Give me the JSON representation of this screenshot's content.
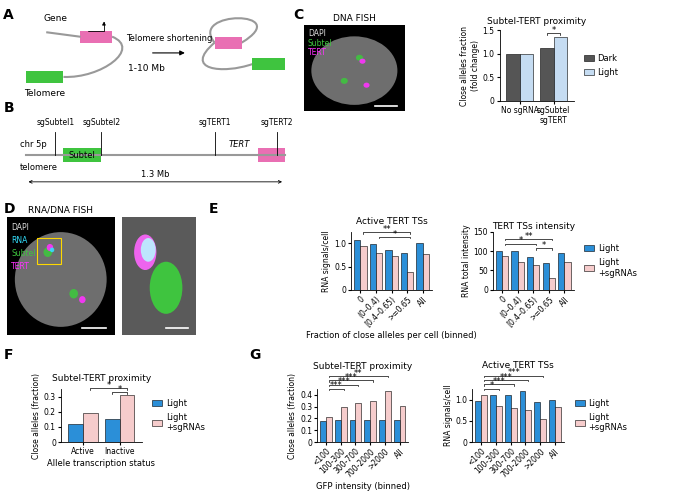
{
  "panel_labels": [
    "A",
    "B",
    "C",
    "D",
    "E",
    "F",
    "G"
  ],
  "diagram_A": {
    "gene": "Gene",
    "telomere": "Telomere",
    "distance": "1-10 Mb",
    "process": "Telomere shortening"
  },
  "diagram_B": {
    "chromosome": "chr 5p",
    "end": "telomere",
    "region": "Subtel",
    "gene": "TERT",
    "guides": [
      "sgSubtel1",
      "sgSubtel2",
      "sgTERT1",
      "sgTERT2"
    ],
    "distance": "1.3 Mb"
  },
  "images": [
    {
      "title": "DNA FISH",
      "channels": [
        "DAPI",
        "Subtel",
        "TERT"
      ]
    },
    {
      "title": "RNA/DNA FISH",
      "channels": [
        "DAPI",
        "RNA",
        "Subtel",
        "TERT"
      ]
    }
  ],
  "chart_data": [
    {
      "type": "bar",
      "title": "Subtel-TERT proximity",
      "ylabel": "Close alleles fraction\n(fold change)",
      "categories": [
        "No sgRNA",
        "sgSubtel\nsgTERT"
      ],
      "series": [
        {
          "name": "Dark",
          "color": "#555555",
          "values": [
            1.0,
            1.13
          ]
        },
        {
          "name": "Light",
          "color": "#c5dcf2",
          "values": [
            1.0,
            1.36
          ]
        }
      ],
      "ylim": [
        0,
        1.5
      ],
      "yticks": [
        0,
        0.5,
        {
          "value": 1,
          "label": "1.0"
        },
        1.5
      ],
      "significance": [
        {
          "a": [
            1,
            0
          ],
          "b": [
            1,
            1
          ],
          "label": "*"
        }
      ],
      "legend": "right"
    },
    {
      "type": "bar",
      "title": "Active TERT TSs",
      "ylabel": "RNA signals/cell",
      "xlabel": "Fraction of close alleles per cell (binned)",
      "categories": [
        "0",
        "(0–0.4)",
        "[0.4–0.65)",
        ">=0.65",
        "All"
      ],
      "series": [
        {
          "name": "Light",
          "color": "#2b8fd8",
          "values": [
            1.08,
            0.98,
            0.85,
            0.8,
            1.02
          ]
        },
        {
          "name": "Light\n+sgRNAs",
          "color": "#f6cccc",
          "values": [
            0.95,
            0.8,
            0.72,
            0.38,
            0.78
          ]
        }
      ],
      "ylim": [
        0,
        1.25
      ],
      "yticks": [
        0,
        0.5,
        {
          "value": 1,
          "label": "1.0"
        }
      ],
      "significance": [
        {
          "a": [
            1,
            1
          ],
          "b": [
            3,
            1
          ],
          "label": "*"
        },
        {
          "a": [
            0,
            1
          ],
          "b": [
            3,
            1
          ],
          "label": "**"
        }
      ]
    },
    {
      "type": "bar",
      "title": "TERT TSs intensity",
      "ylabel": "RNA total intensity",
      "categories": [
        "0",
        "(0–0.4)",
        "[0.4–0.65)",
        ">=0.65",
        "All"
      ],
      "series": [
        {
          "name": "Light",
          "color": "#2b8fd8",
          "values": [
            100,
            100,
            85,
            70,
            96
          ]
        },
        {
          "name": "Light\n+sgRNAs",
          "color": "#f6cccc",
          "values": [
            88,
            72,
            65,
            30,
            72
          ]
        }
      ],
      "ylim": [
        0,
        150
      ],
      "yticks": [
        0,
        50,
        100,
        150
      ],
      "significance": [
        {
          "a": [
            2,
            1
          ],
          "b": [
            3,
            1
          ],
          "label": "*"
        },
        {
          "a": [
            0,
            1
          ],
          "b": [
            2,
            1
          ],
          "label": "*"
        },
        {
          "a": [
            0,
            1
          ],
          "b": [
            3,
            1
          ],
          "label": "**"
        }
      ],
      "legend": "right"
    },
    {
      "type": "bar",
      "title": "Subtel-TERT proximity",
      "ylabel": "Close alleles (fraction)",
      "xlabel": "Allele transcription status",
      "categories": [
        "Active",
        "Inactive"
      ],
      "series": [
        {
          "name": "Light",
          "color": "#2b8fd8",
          "values": [
            0.12,
            0.15
          ]
        },
        {
          "name": "Light\n+sgRNAs",
          "color": "#f6cccc",
          "values": [
            0.19,
            0.31
          ]
        }
      ],
      "ylim": [
        0,
        0.35
      ],
      "yticks": [
        0,
        0.1,
        0.2,
        0.3
      ],
      "significance": [
        {
          "a": [
            1,
            0
          ],
          "b": [
            1,
            1
          ],
          "label": "*"
        },
        {
          "a": [
            0,
            1
          ],
          "b": [
            1,
            1
          ],
          "label": "*"
        }
      ],
      "legend": "right"
    },
    {
      "type": "bar",
      "title": "Subtel-TERT proximity",
      "ylabel": "Close alleles (fraction)",
      "xlabel": "GFP intensity (binned)",
      "categories": [
        "<100",
        "100-300",
        "300-700",
        "700-2000",
        ">2000",
        "All"
      ],
      "series": [
        {
          "name": "Light",
          "color": "#2b8fd8",
          "values": [
            0.18,
            0.19,
            0.19,
            0.19,
            0.19,
            0.19
          ]
        },
        {
          "name": "Light\n+sgRNAs",
          "color": "#f6cccc",
          "values": [
            0.21,
            0.3,
            0.33,
            0.35,
            0.43,
            0.31
          ]
        }
      ],
      "ylim": [
        0,
        0.45
      ],
      "yticks": [
        0,
        0.1,
        0.2,
        0.3,
        0.4
      ],
      "significance": [
        {
          "a": [
            0,
            1
          ],
          "b": [
            1,
            1
          ],
          "label": "***"
        },
        {
          "a": [
            0,
            1
          ],
          "b": [
            2,
            1
          ],
          "label": "***"
        },
        {
          "a": [
            0,
            1
          ],
          "b": [
            3,
            1
          ],
          "label": "***"
        },
        {
          "a": [
            0,
            1
          ],
          "b": [
            4,
            1
          ],
          "label": "**"
        }
      ]
    },
    {
      "type": "bar",
      "title": "Active TERT TSs",
      "ylabel": "RNA signals/cell",
      "categories": [
        "<100",
        "100-300",
        "300-700",
        "700-2000",
        ">2000",
        "All"
      ],
      "series": [
        {
          "name": "Light",
          "color": "#2b8fd8",
          "values": [
            0.98,
            1.1,
            1.1,
            1.2,
            0.95,
            1.0
          ]
        },
        {
          "name": "Light\n+sgRNAs",
          "color": "#f6cccc",
          "values": [
            1.12,
            0.85,
            0.8,
            0.75,
            0.55,
            0.83
          ]
        }
      ],
      "ylim": [
        0,
        1.25
      ],
      "yticks": [
        0,
        0.5,
        {
          "value": 1,
          "label": "1.0"
        }
      ],
      "significance": [
        {
          "a": [
            0,
            1
          ],
          "b": [
            1,
            1
          ],
          "label": "*"
        },
        {
          "a": [
            0,
            1
          ],
          "b": [
            2,
            1
          ],
          "label": "***"
        },
        {
          "a": [
            0,
            1
          ],
          "b": [
            3,
            1
          ],
          "label": "***"
        },
        {
          "a": [
            0,
            1
          ],
          "b": [
            4,
            1
          ],
          "label": "***"
        }
      ],
      "legend": "right"
    }
  ]
}
